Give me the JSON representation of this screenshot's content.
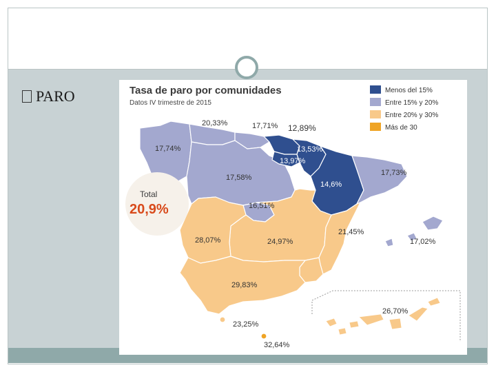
{
  "slide": {
    "title": "PARO",
    "title_bullet_icon": "square-bullet-icon"
  },
  "map": {
    "title": "Tasa de paro por comunidades",
    "subtitle": "Datos IV trimestre de 2015",
    "legend": [
      {
        "label": "Menos del 15%",
        "color": "#2f4f8f"
      },
      {
        "label": "Entre 15% y 20%",
        "color": "#a3a8cf"
      },
      {
        "label": "Entre 20% y 30%",
        "color": "#f8c98a"
      },
      {
        "label": "Más de 30",
        "color": "#efa425"
      }
    ],
    "total_label": "Total",
    "total_value": "20,9%",
    "regions": [
      {
        "name": "galicia",
        "value": "17,74%"
      },
      {
        "name": "asturias",
        "value": "20,33%"
      },
      {
        "name": "cantabria",
        "value": "17,71%"
      },
      {
        "name": "pais-vasco",
        "value": "12,89%"
      },
      {
        "name": "navarra",
        "value": "13,53%"
      },
      {
        "name": "la-rioja",
        "value": "13,97%"
      },
      {
        "name": "castilla-y-leon",
        "value": "17,58%"
      },
      {
        "name": "aragon",
        "value": "14,6%"
      },
      {
        "name": "cataluna",
        "value": "17,73%"
      },
      {
        "name": "madrid",
        "value": "16,51%"
      },
      {
        "name": "extremadura",
        "value": "28,07%"
      },
      {
        "name": "castilla-la-mancha",
        "value": "24,97%"
      },
      {
        "name": "valencia",
        "value": "21,45%"
      },
      {
        "name": "baleares",
        "value": "17,02%"
      },
      {
        "name": "andalucia",
        "value": "29,83%"
      },
      {
        "name": "murcia",
        "value": ""
      },
      {
        "name": "canarias",
        "value": "26,70%"
      },
      {
        "name": "ceuta",
        "value": "23,25%"
      },
      {
        "name": "melilla",
        "value": "32,64%"
      }
    ]
  }
}
